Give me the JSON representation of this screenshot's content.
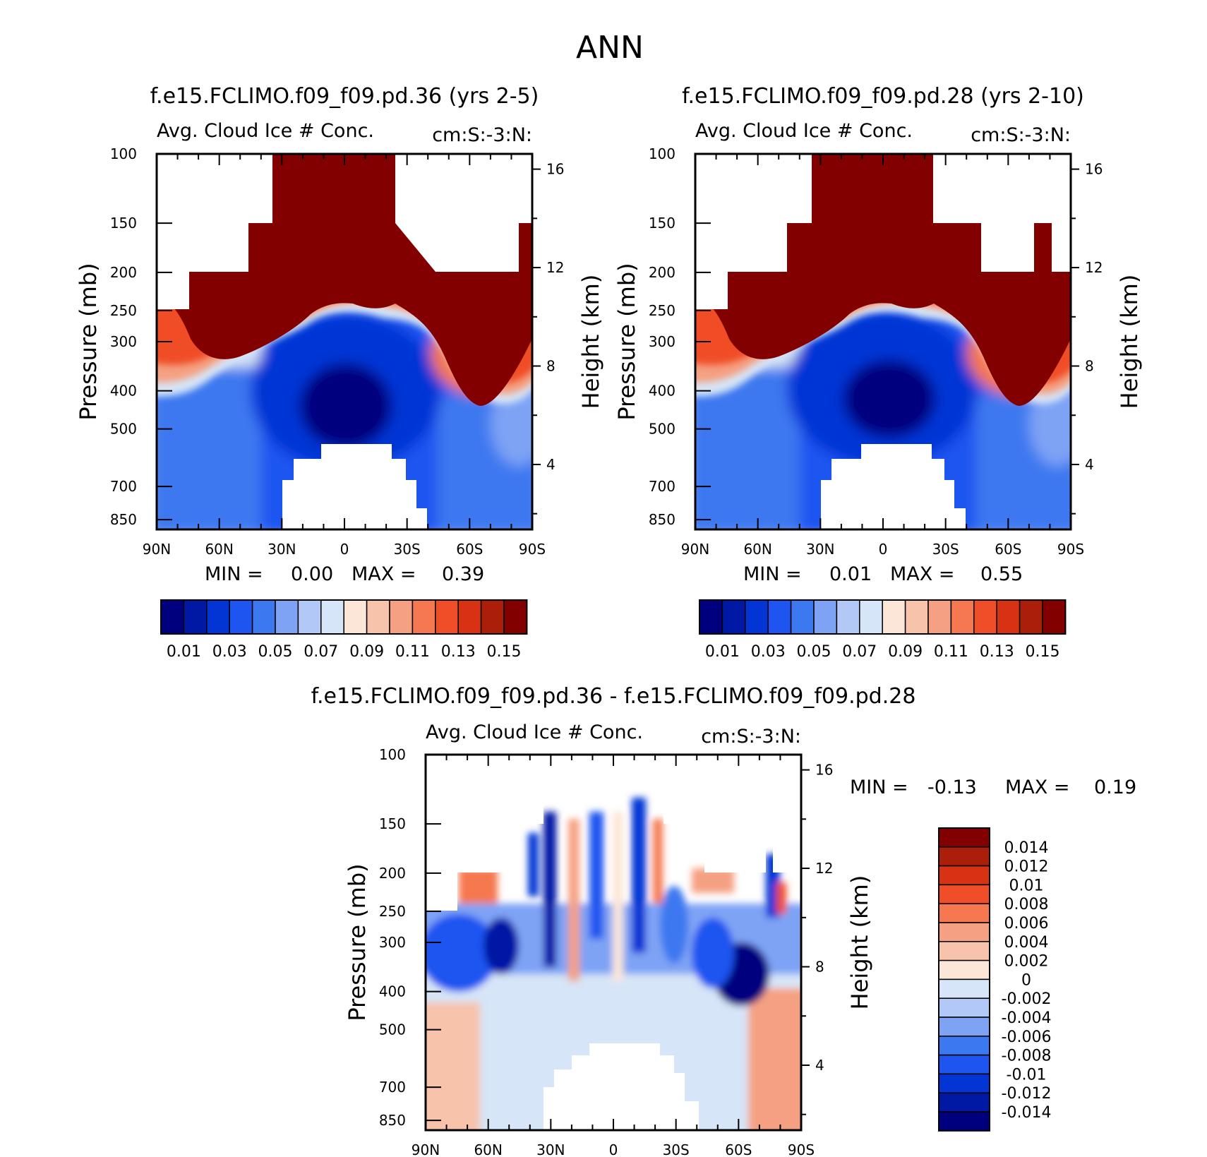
{
  "figure": {
    "title": "ANN",
    "colors": {
      "mean_levels": [
        "#00007f",
        "#0019a5",
        "#0335d5",
        "#1e55f0",
        "#3c78f0",
        "#7ea3f5",
        "#b2c9f7",
        "#d6e5f7",
        "#fce6d8",
        "#f7c3aa",
        "#f5a082",
        "#f57850",
        "#f04e28",
        "#d73214",
        "#aa1e0a",
        "#820000"
      ],
      "diff_levels": [
        "#00007f",
        "#0019a5",
        "#0335d5",
        "#1e55f0",
        "#3c78f0",
        "#7ea3f5",
        "#b2c9f7",
        "#d6e5f7",
        "#fce6d8",
        "#f7c3aa",
        "#f5a082",
        "#f57850",
        "#f04e28",
        "#d73214",
        "#aa1e0a",
        "#820000"
      ]
    }
  },
  "chart_data": [
    {
      "type": "heatmap",
      "panel": "case1",
      "title": "f.e15.FCLIMO.f09_f09.pd.36 (yrs 2-5)",
      "subtitle_left": "Avg. Cloud Ice # Conc.",
      "subtitle_right": "cm:S:-3:N:",
      "ylabel": "Pressure (mb)",
      "ylabel_right": "Height (km)",
      "x_ticks": [
        "90N",
        "60N",
        "30N",
        "0",
        "30S",
        "60S",
        "90S"
      ],
      "x_values": [
        90,
        60,
        30,
        0,
        -30,
        -60,
        -90
      ],
      "xlim": [
        90,
        -90
      ],
      "y_ticks": [
        "100",
        "150",
        "200",
        "250",
        "300",
        "400",
        "500",
        "700",
        "850"
      ],
      "y_values": [
        100,
        150,
        200,
        250,
        300,
        400,
        500,
        700,
        850
      ],
      "ylim": [
        1000,
        100
      ],
      "right_ticks": [
        "16",
        "12",
        "8",
        "4"
      ],
      "right_values": [
        16,
        12,
        8,
        4
      ],
      "min_label": "MIN =",
      "min_value": "0.00",
      "max_label": "MAX =",
      "max_value": "0.39",
      "colorbar_labels": [
        "0.01",
        "0.03",
        "0.05",
        "0.07",
        "0.09",
        "0.11",
        "0.13",
        "0.15"
      ],
      "levels": [
        0.01,
        0.02,
        0.03,
        0.04,
        0.05,
        0.06,
        0.07,
        0.08,
        0.09,
        0.1,
        0.11,
        0.12,
        0.13,
        0.14,
        0.15
      ]
    },
    {
      "type": "heatmap",
      "panel": "case2",
      "title": "f.e15.FCLIMO.f09_f09.pd.28 (yrs 2-10)",
      "subtitle_left": "Avg. Cloud Ice # Conc.",
      "subtitle_right": "cm:S:-3:N:",
      "ylabel": "Pressure (mb)",
      "ylabel_right": "Height (km)",
      "x_ticks": [
        "90N",
        "60N",
        "30N",
        "0",
        "30S",
        "60S",
        "90S"
      ],
      "x_values": [
        90,
        60,
        30,
        0,
        -30,
        -60,
        -90
      ],
      "xlim": [
        90,
        -90
      ],
      "y_ticks": [
        "100",
        "150",
        "200",
        "250",
        "300",
        "400",
        "500",
        "700",
        "850"
      ],
      "y_values": [
        100,
        150,
        200,
        250,
        300,
        400,
        500,
        700,
        850
      ],
      "ylim": [
        1000,
        100
      ],
      "right_ticks": [
        "16",
        "12",
        "8",
        "4"
      ],
      "right_values": [
        16,
        12,
        8,
        4
      ],
      "min_label": "MIN =",
      "min_value": "0.01",
      "max_label": "MAX =",
      "max_value": "0.55",
      "colorbar_labels": [
        "0.01",
        "0.03",
        "0.05",
        "0.07",
        "0.09",
        "0.11",
        "0.13",
        "0.15"
      ],
      "levels": [
        0.01,
        0.02,
        0.03,
        0.04,
        0.05,
        0.06,
        0.07,
        0.08,
        0.09,
        0.1,
        0.11,
        0.12,
        0.13,
        0.14,
        0.15
      ]
    },
    {
      "type": "heatmap",
      "panel": "difference",
      "title": "f.e15.FCLIMO.f09_f09.pd.36 - f.e15.FCLIMO.f09_f09.pd.28",
      "subtitle_left": "Avg. Cloud Ice # Conc.",
      "subtitle_right": "cm:S:-3:N:",
      "ylabel": "Pressure (mb)",
      "ylabel_right": "Height (km)",
      "x_ticks": [
        "90N",
        "60N",
        "30N",
        "0",
        "30S",
        "60S",
        "90S"
      ],
      "x_values": [
        90,
        60,
        30,
        0,
        -30,
        -60,
        -90
      ],
      "xlim": [
        90,
        -90
      ],
      "y_ticks": [
        "100",
        "150",
        "200",
        "250",
        "300",
        "400",
        "500",
        "700",
        "850"
      ],
      "y_values": [
        100,
        150,
        200,
        250,
        300,
        400,
        500,
        700,
        850
      ],
      "ylim": [
        1000,
        100
      ],
      "right_ticks": [
        "16",
        "12",
        "8",
        "4"
      ],
      "right_values": [
        16,
        12,
        8,
        4
      ],
      "min_label": "MIN =",
      "min_value": "-0.13",
      "max_label": "MAX =",
      "max_value": "0.19",
      "colorbar_labels": [
        "0.014",
        "0.012",
        "0.01",
        "0.008",
        "0.006",
        "0.004",
        "0.002",
        "0",
        "-0.002",
        "-0.004",
        "-0.006",
        "-0.008",
        "-0.01",
        "-0.012",
        "-0.014"
      ],
      "levels": [
        0.014,
        0.012,
        0.01,
        0.008,
        0.006,
        0.004,
        0.002,
        0,
        -0.002,
        -0.004,
        -0.006,
        -0.008,
        -0.01,
        -0.012,
        -0.014
      ]
    }
  ]
}
